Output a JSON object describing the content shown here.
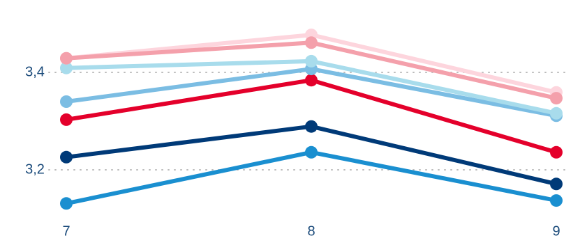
{
  "chart_data": {
    "type": "line",
    "categories": [
      "7",
      "8",
      "9"
    ],
    "series": [
      {
        "color": "#1a8fd0",
        "values": [
          3.131,
          3.236,
          3.137
        ]
      },
      {
        "color": "#003a78",
        "values": [
          3.226,
          3.289,
          3.171
        ]
      },
      {
        "color": "#e4002b",
        "values": [
          3.303,
          3.384,
          3.236
        ]
      },
      {
        "color": "#7bbde3",
        "values": [
          3.34,
          3.407,
          3.311
        ]
      },
      {
        "color": "#a8dcec",
        "values": [
          3.409,
          3.423,
          3.316
        ]
      },
      {
        "color": "#fdd5dd",
        "values": [
          3.429,
          3.477,
          3.359
        ]
      },
      {
        "color": "#f4a0ab",
        "values": [
          3.429,
          3.461,
          3.347
        ]
      }
    ],
    "ylim": [
      3.1,
      3.52
    ],
    "yticks": [
      {
        "value": 3.2,
        "label": "3,2"
      },
      {
        "value": 3.4,
        "label": "3,4"
      }
    ],
    "grid": true
  }
}
